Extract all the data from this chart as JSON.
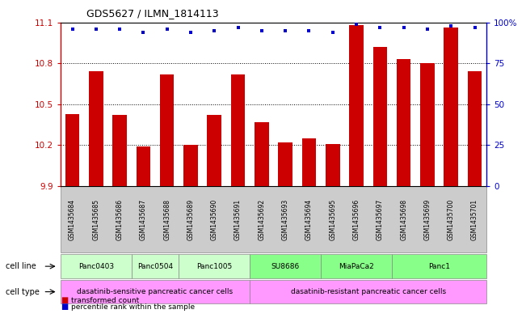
{
  "title": "GDS5627 / ILMN_1814113",
  "samples": [
    "GSM1435684",
    "GSM1435685",
    "GSM1435686",
    "GSM1435687",
    "GSM1435688",
    "GSM1435689",
    "GSM1435690",
    "GSM1435691",
    "GSM1435692",
    "GSM1435693",
    "GSM1435694",
    "GSM1435695",
    "GSM1435696",
    "GSM1435697",
    "GSM1435698",
    "GSM1435699",
    "GSM1435700",
    "GSM1435701"
  ],
  "bar_values": [
    10.43,
    10.74,
    10.42,
    10.19,
    10.72,
    10.2,
    10.42,
    10.72,
    10.37,
    10.22,
    10.25,
    10.21,
    11.08,
    10.92,
    10.83,
    10.8,
    11.06,
    10.74
  ],
  "percentile_values": [
    96,
    96,
    96,
    94,
    96,
    94,
    95,
    97,
    95,
    95,
    95,
    94,
    99,
    97,
    97,
    96,
    98,
    97
  ],
  "bar_color": "#cc0000",
  "percentile_color": "#0000cc",
  "ymin": 9.9,
  "ymax": 11.1,
  "yticks": [
    9.9,
    10.2,
    10.5,
    10.8,
    11.1
  ],
  "right_yticks": [
    0,
    25,
    50,
    75,
    100
  ],
  "right_ytick_labels": [
    "0",
    "25",
    "50",
    "75",
    "100%"
  ],
  "cell_line_data": [
    {
      "label": "Panc0403",
      "start": 0,
      "end": 2,
      "color": "#ccffcc"
    },
    {
      "label": "Panc0504",
      "start": 3,
      "end": 4,
      "color": "#ccffcc"
    },
    {
      "label": "Panc1005",
      "start": 5,
      "end": 7,
      "color": "#ccffcc"
    },
    {
      "label": "SU8686",
      "start": 8,
      "end": 10,
      "color": "#88ff88"
    },
    {
      "label": "MiaPaCa2",
      "start": 11,
      "end": 13,
      "color": "#88ff88"
    },
    {
      "label": "Panc1",
      "start": 14,
      "end": 17,
      "color": "#88ff88"
    }
  ],
  "cell_type_data": [
    {
      "label": "dasatinib-sensitive pancreatic cancer cells",
      "start": 0,
      "end": 7,
      "color": "#ff99ff"
    },
    {
      "label": "dasatinib-resistant pancreatic cancer cells",
      "start": 8,
      "end": 17,
      "color": "#ff99ff"
    }
  ],
  "legend_items": [
    {
      "label": "transformed count",
      "color": "#cc0000"
    },
    {
      "label": "percentile rank within the sample",
      "color": "#0000cc"
    }
  ],
  "background_color": "#ffffff",
  "gsm_bg_color": "#cccccc",
  "grid_yticks": [
    10.2,
    10.5,
    10.8
  ]
}
